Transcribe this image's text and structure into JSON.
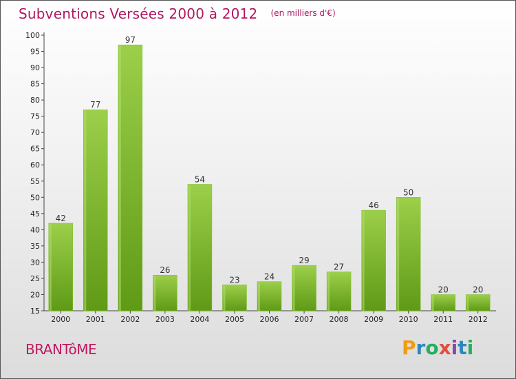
{
  "chart_data": {
    "type": "bar",
    "title": "Subventions Versées 2000 à 2012",
    "subtitle": "(en milliers d'€)",
    "categories": [
      "2000",
      "2001",
      "2002",
      "2003",
      "2004",
      "2005",
      "2006",
      "2007",
      "2008",
      "2009",
      "2010",
      "2011",
      "2012"
    ],
    "values": [
      42,
      77,
      97,
      26,
      54,
      23,
      24,
      29,
      27,
      46,
      50,
      20,
      20
    ],
    "ylim": [
      15,
      100
    ],
    "yticks": [
      15,
      20,
      25,
      30,
      35,
      40,
      45,
      50,
      55,
      60,
      65,
      70,
      75,
      80,
      85,
      90,
      95,
      100
    ],
    "grid": false,
    "bar_color": "#77b82a"
  },
  "place": "BRANTôME",
  "logo": {
    "text": "Proxiti",
    "letters": [
      {
        "char": "P",
        "color": "#f39c12"
      },
      {
        "char": "r",
        "color": "#2e86c1"
      },
      {
        "char": "o",
        "color": "#27ae60"
      },
      {
        "char": "x",
        "color": "#e74c3c"
      },
      {
        "char": "i",
        "color": "#8e44ad"
      },
      {
        "char": "t",
        "color": "#2e86c1"
      },
      {
        "char": "i",
        "color": "#27ae60"
      }
    ]
  }
}
